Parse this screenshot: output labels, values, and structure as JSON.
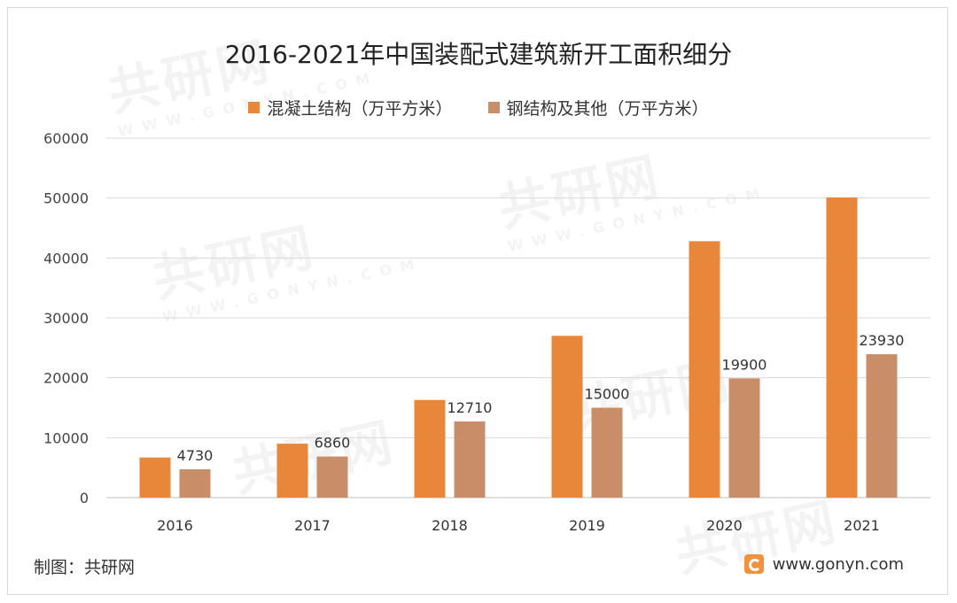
{
  "chart_data": {
    "type": "bar",
    "title": "2016-2021年中国装配式建筑新开工面积细分",
    "categories": [
      "2016",
      "2017",
      "2018",
      "2019",
      "2020",
      "2021"
    ],
    "series": [
      {
        "name": "混凝土结构（万平方米）",
        "values": [
          6700,
          9000,
          16300,
          27000,
          42800,
          50100
        ],
        "labels_shown": false
      },
      {
        "name": "钢结构及其他（万平方米）",
        "values": [
          4730,
          6860,
          12710,
          15000,
          19900,
          23930
        ],
        "labels_shown": true
      }
    ],
    "ylim": [
      0,
      60000
    ],
    "yticks": [
      0,
      10000,
      20000,
      30000,
      40000,
      50000,
      60000
    ],
    "xlabel": "",
    "ylabel": "",
    "grid": true,
    "legend_position": "top"
  },
  "colors": {
    "concrete": "#E8873A",
    "steel": "#C98D68",
    "grid": "#d9d9d9",
    "axis": "#bfbfbf"
  },
  "footer": {
    "source": "制图：共研网",
    "website": "www.gonyn.com"
  },
  "watermark": {
    "brand": "共研网",
    "url": "WWW.GONYN.COM"
  }
}
